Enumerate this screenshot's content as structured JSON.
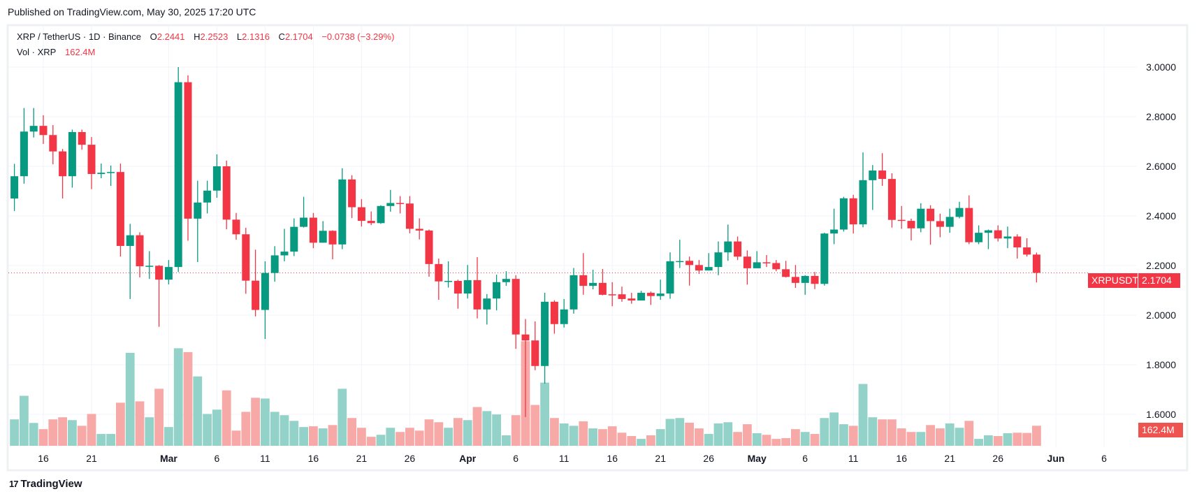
{
  "header": {
    "published": "Published on TradingView.com, May 30, 2025 17:20 UTC"
  },
  "legend": {
    "symbol": "XRP / TetherUS · 1D · Binance",
    "o_label": "O",
    "o": "2.2441",
    "h_label": "H",
    "h": "2.2523",
    "l_label": "L",
    "l": "2.1316",
    "c_label": "C",
    "c": "2.1704",
    "change": "−0.0738 (−3.29%)",
    "vol_label": "Vol · XRP",
    "vol": "162.4M"
  },
  "price_tag": {
    "symbol": "XRPUSDT",
    "price": "2.1704"
  },
  "volume_tag": "162.4M",
  "footer": {
    "logo": "TradingView",
    "logo_mark": "17"
  },
  "colors": {
    "up": "#089981",
    "down": "#f23645",
    "up_volume": "#93d2c8",
    "down_volume": "#f7a9a7",
    "grid": "#f0f3fa"
  },
  "chart_data": {
    "type": "candlestick",
    "grid": true,
    "ylim": [
      1.55,
      3.05
    ],
    "y_ticks": [
      "3.0000",
      "2.8000",
      "2.6000",
      "2.4000",
      "2.2000",
      "2.0000",
      "1.8000",
      "1.6000"
    ],
    "x_ticks": [
      {
        "label": "16",
        "date": "2025-02-16"
      },
      {
        "label": "21",
        "date": "2025-02-21"
      },
      {
        "label": "Mar",
        "date": "2025-03-01",
        "bold": true
      },
      {
        "label": "6",
        "date": "2025-03-06"
      },
      {
        "label": "11",
        "date": "2025-03-11"
      },
      {
        "label": "16",
        "date": "2025-03-16"
      },
      {
        "label": "21",
        "date": "2025-03-21"
      },
      {
        "label": "26",
        "date": "2025-03-26"
      },
      {
        "label": "Apr",
        "date": "2025-04-01",
        "bold": true
      },
      {
        "label": "6",
        "date": "2025-04-06"
      },
      {
        "label": "11",
        "date": "2025-04-11"
      },
      {
        "label": "16",
        "date": "2025-04-16"
      },
      {
        "label": "21",
        "date": "2025-04-21"
      },
      {
        "label": "26",
        "date": "2025-04-26"
      },
      {
        "label": "May",
        "date": "2025-05-01",
        "bold": true
      },
      {
        "label": "6",
        "date": "2025-05-06"
      },
      {
        "label": "11",
        "date": "2025-05-11"
      },
      {
        "label": "16",
        "date": "2025-05-16"
      },
      {
        "label": "21",
        "date": "2025-05-21"
      },
      {
        "label": "26",
        "date": "2025-05-26"
      },
      {
        "label": "Jun",
        "date": "2025-06-01",
        "bold": true
      },
      {
        "label": "6",
        "date": "2025-06-06"
      }
    ],
    "last_price": 2.1704,
    "volume_unit": "M",
    "columns": [
      "date",
      "open",
      "high",
      "low",
      "close",
      "volume"
    ],
    "candles": [
      [
        "2025-02-13",
        2.47,
        2.61,
        2.42,
        2.56,
        214
      ],
      [
        "2025-02-14",
        2.56,
        2.835,
        2.53,
        2.74,
        405
      ],
      [
        "2025-02-15",
        2.74,
        2.835,
        2.716,
        2.763,
        185
      ],
      [
        "2025-02-16",
        2.763,
        2.806,
        2.69,
        2.726,
        135
      ],
      [
        "2025-02-17",
        2.726,
        2.766,
        2.608,
        2.66,
        214
      ],
      [
        "2025-02-18",
        2.66,
        2.67,
        2.47,
        2.56,
        231
      ],
      [
        "2025-02-19",
        2.56,
        2.748,
        2.514,
        2.738,
        208
      ],
      [
        "2025-02-20",
        2.738,
        2.748,
        2.667,
        2.687,
        162
      ],
      [
        "2025-02-21",
        2.687,
        2.718,
        2.508,
        2.569,
        258
      ],
      [
        "2025-02-22",
        2.569,
        2.611,
        2.552,
        2.574,
        96
      ],
      [
        "2025-02-23",
        2.574,
        2.603,
        2.521,
        2.577,
        96
      ],
      [
        "2025-02-24",
        2.577,
        2.611,
        2.236,
        2.279,
        349
      ],
      [
        "2025-02-25",
        2.279,
        2.368,
        2.065,
        2.322,
        753
      ],
      [
        "2025-02-26",
        2.322,
        2.334,
        2.152,
        2.197,
        360
      ],
      [
        "2025-02-27",
        2.197,
        2.258,
        2.146,
        2.199,
        231
      ],
      [
        "2025-02-28",
        2.199,
        2.202,
        1.953,
        2.143,
        462
      ],
      [
        "2025-03-01",
        2.143,
        2.222,
        2.124,
        2.194,
        152
      ],
      [
        "2025-03-02",
        2.194,
        3.0,
        2.174,
        2.939,
        790
      ],
      [
        "2025-03-03",
        2.939,
        2.967,
        2.3,
        2.389,
        759
      ],
      [
        "2025-03-04",
        2.389,
        2.542,
        2.214,
        2.454,
        562
      ],
      [
        "2025-03-05",
        2.454,
        2.542,
        2.41,
        2.502,
        258
      ],
      [
        "2025-03-06",
        2.502,
        2.648,
        2.473,
        2.6,
        293
      ],
      [
        "2025-03-07",
        2.6,
        2.623,
        2.346,
        2.385,
        449
      ],
      [
        "2025-03-08",
        2.385,
        2.412,
        2.304,
        2.326,
        123
      ],
      [
        "2025-03-09",
        2.326,
        2.352,
        2.086,
        2.139,
        275
      ],
      [
        "2025-03-10",
        2.139,
        2.264,
        1.995,
        2.021,
        389
      ],
      [
        "2025-03-11",
        2.021,
        2.217,
        1.904,
        2.17,
        383
      ],
      [
        "2025-03-12",
        2.17,
        2.278,
        2.135,
        2.241,
        275
      ],
      [
        "2025-03-13",
        2.241,
        2.348,
        2.217,
        2.256,
        248
      ],
      [
        "2025-03-14",
        2.256,
        2.39,
        2.238,
        2.356,
        202
      ],
      [
        "2025-03-15",
        2.356,
        2.477,
        2.353,
        2.393,
        152
      ],
      [
        "2025-03-16",
        2.393,
        2.412,
        2.27,
        2.292,
        158
      ],
      [
        "2025-03-17",
        2.292,
        2.379,
        2.292,
        2.34,
        141
      ],
      [
        "2025-03-18",
        2.34,
        2.342,
        2.225,
        2.285,
        168
      ],
      [
        "2025-03-19",
        2.285,
        2.592,
        2.266,
        2.547,
        462
      ],
      [
        "2025-03-20",
        2.547,
        2.564,
        2.391,
        2.435,
        225
      ],
      [
        "2025-03-21",
        2.435,
        2.468,
        2.357,
        2.38,
        146
      ],
      [
        "2025-03-22",
        2.38,
        2.418,
        2.363,
        2.371,
        73
      ],
      [
        "2025-03-23",
        2.371,
        2.443,
        2.368,
        2.44,
        89
      ],
      [
        "2025-03-24",
        2.44,
        2.505,
        2.417,
        2.452,
        146
      ],
      [
        "2025-03-25",
        2.452,
        2.48,
        2.41,
        2.45,
        112
      ],
      [
        "2025-03-26",
        2.45,
        2.48,
        2.33,
        2.348,
        146
      ],
      [
        "2025-03-27",
        2.348,
        2.39,
        2.305,
        2.341,
        123
      ],
      [
        "2025-03-28",
        2.341,
        2.345,
        2.155,
        2.206,
        214
      ],
      [
        "2025-03-29",
        2.206,
        2.228,
        2.062,
        2.136,
        191
      ],
      [
        "2025-03-30",
        2.136,
        2.217,
        2.111,
        2.138,
        146
      ],
      [
        "2025-03-31",
        2.138,
        2.143,
        2.026,
        2.087,
        225
      ],
      [
        "2025-04-01",
        2.087,
        2.202,
        2.067,
        2.141,
        208
      ],
      [
        "2025-04-02",
        2.141,
        2.234,
        1.987,
        2.023,
        314
      ],
      [
        "2025-04-03",
        2.023,
        2.085,
        1.962,
        2.067,
        281
      ],
      [
        "2025-04-04",
        2.067,
        2.163,
        2.019,
        2.133,
        254
      ],
      [
        "2025-04-05",
        2.133,
        2.177,
        2.118,
        2.146,
        85
      ],
      [
        "2025-04-06",
        2.146,
        2.161,
        1.864,
        1.922,
        248
      ],
      [
        "2025-04-07",
        1.922,
        1.984,
        1.589,
        1.898,
        847
      ],
      [
        "2025-04-08",
        1.898,
        1.975,
        1.778,
        1.795,
        331
      ],
      [
        "2025-04-09",
        1.795,
        2.09,
        1.724,
        2.054,
        512
      ],
      [
        "2025-04-10",
        2.054,
        2.06,
        1.925,
        1.964,
        225
      ],
      [
        "2025-04-11",
        1.964,
        2.065,
        1.95,
        2.023,
        181
      ],
      [
        "2025-04-12",
        2.023,
        2.19,
        2.006,
        2.161,
        162
      ],
      [
        "2025-04-13",
        2.161,
        2.25,
        2.082,
        2.118,
        198
      ],
      [
        "2025-04-14",
        2.118,
        2.183,
        2.104,
        2.13,
        141
      ],
      [
        "2025-04-15",
        2.13,
        2.186,
        2.08,
        2.082,
        135
      ],
      [
        "2025-04-16",
        2.084,
        2.133,
        2.036,
        2.082,
        158
      ],
      [
        "2025-04-17",
        2.084,
        2.115,
        2.054,
        2.065,
        106
      ],
      [
        "2025-04-18",
        2.067,
        2.09,
        2.046,
        2.059,
        79
      ],
      [
        "2025-04-19",
        2.059,
        2.098,
        2.059,
        2.09,
        56
      ],
      [
        "2025-04-20",
        2.09,
        2.095,
        2.041,
        2.077,
        85
      ],
      [
        "2025-04-21",
        2.077,
        2.143,
        2.062,
        2.087,
        135
      ],
      [
        "2025-04-22",
        2.087,
        2.253,
        2.066,
        2.217,
        218
      ],
      [
        "2025-04-23",
        2.216,
        2.304,
        2.19,
        2.218,
        225
      ],
      [
        "2025-04-24",
        2.219,
        2.236,
        2.119,
        2.202,
        187
      ],
      [
        "2025-04-25",
        2.202,
        2.222,
        2.166,
        2.18,
        141
      ],
      [
        "2025-04-26",
        2.18,
        2.25,
        2.18,
        2.194,
        96
      ],
      [
        "2025-04-27",
        2.194,
        2.297,
        2.161,
        2.253,
        181
      ],
      [
        "2025-04-28",
        2.253,
        2.365,
        2.219,
        2.297,
        191
      ],
      [
        "2025-04-29",
        2.297,
        2.317,
        2.222,
        2.236,
        112
      ],
      [
        "2025-04-30",
        2.236,
        2.261,
        2.123,
        2.189,
        175
      ],
      [
        "2025-05-01",
        2.189,
        2.258,
        2.189,
        2.213,
        102
      ],
      [
        "2025-05-02",
        2.213,
        2.242,
        2.194,
        2.21,
        89
      ],
      [
        "2025-05-03",
        2.21,
        2.222,
        2.177,
        2.185,
        56
      ],
      [
        "2025-05-04",
        2.185,
        2.219,
        2.152,
        2.154,
        62
      ],
      [
        "2025-05-05",
        2.154,
        2.202,
        2.11,
        2.13,
        135
      ],
      [
        "2025-05-06",
        2.13,
        2.161,
        2.082,
        2.158,
        112
      ],
      [
        "2025-05-07",
        2.158,
        2.174,
        2.105,
        2.126,
        96
      ],
      [
        "2025-05-08",
        2.126,
        2.332,
        2.119,
        2.329,
        225
      ],
      [
        "2025-05-09",
        2.329,
        2.429,
        2.286,
        2.345,
        270
      ],
      [
        "2025-05-10",
        2.345,
        2.477,
        2.337,
        2.471,
        175
      ],
      [
        "2025-05-11",
        2.471,
        2.485,
        2.329,
        2.366,
        162
      ],
      [
        "2025-05-12",
        2.366,
        2.656,
        2.354,
        2.544,
        501
      ],
      [
        "2025-05-13",
        2.544,
        2.605,
        2.424,
        2.583,
        231
      ],
      [
        "2025-05-14",
        2.583,
        2.653,
        2.521,
        2.549,
        214
      ],
      [
        "2025-05-15",
        2.549,
        2.572,
        2.353,
        2.384,
        214
      ],
      [
        "2025-05-16",
        2.384,
        2.44,
        2.348,
        2.38,
        141
      ],
      [
        "2025-05-17",
        2.38,
        2.389,
        2.301,
        2.35,
        112
      ],
      [
        "2025-05-18",
        2.35,
        2.451,
        2.334,
        2.429,
        112
      ],
      [
        "2025-05-19",
        2.429,
        2.443,
        2.284,
        2.379,
        168
      ],
      [
        "2025-05-20",
        2.379,
        2.409,
        2.314,
        2.356,
        141
      ],
      [
        "2025-05-21",
        2.356,
        2.429,
        2.332,
        2.396,
        181
      ],
      [
        "2025-05-22",
        2.396,
        2.457,
        2.39,
        2.432,
        146
      ],
      [
        "2025-05-23",
        2.432,
        2.483,
        2.286,
        2.294,
        202
      ],
      [
        "2025-05-24",
        2.294,
        2.362,
        2.286,
        2.332,
        56
      ],
      [
        "2025-05-25",
        2.332,
        2.345,
        2.266,
        2.342,
        85
      ],
      [
        "2025-05-26",
        2.342,
        2.362,
        2.297,
        2.309,
        79
      ],
      [
        "2025-05-27",
        2.309,
        2.357,
        2.27,
        2.317,
        102
      ],
      [
        "2025-05-28",
        2.317,
        2.326,
        2.228,
        2.273,
        106
      ],
      [
        "2025-05-29",
        2.273,
        2.31,
        2.236,
        2.2441,
        104
      ],
      [
        "2025-05-30",
        2.2441,
        2.2523,
        2.1316,
        2.1704,
        162.4
      ]
    ]
  }
}
